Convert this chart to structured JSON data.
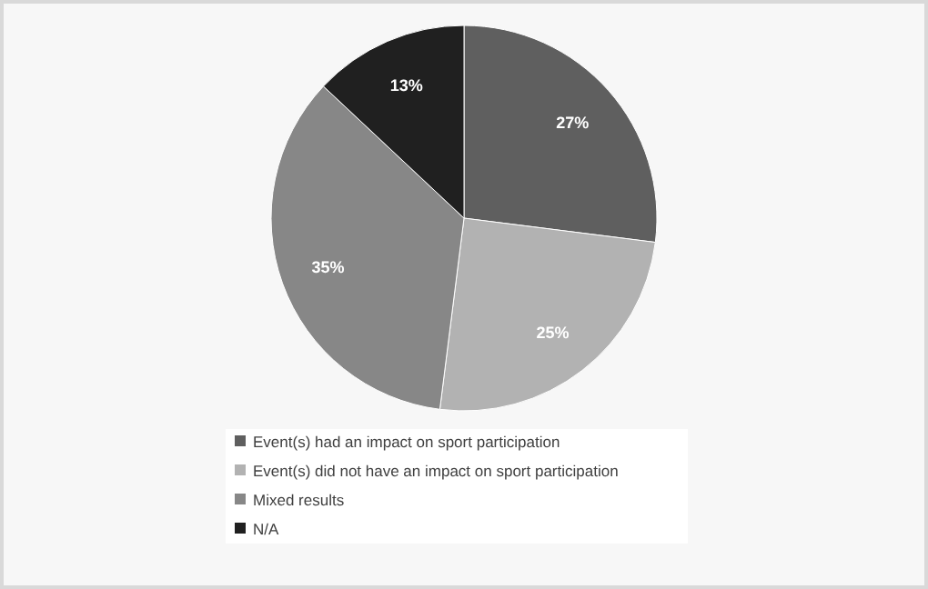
{
  "chart_data": {
    "type": "pie",
    "categories": [
      "Event(s) had an impact on sport participation",
      "Event(s) did not have an impact on sport participation",
      "Mixed results",
      "N/A"
    ],
    "values": [
      27,
      25,
      35,
      13
    ],
    "colors": [
      "#5f5f5f",
      "#b2b2b2",
      "#878787",
      "#202020"
    ],
    "value_labels": [
      "27%",
      "25%",
      "35%",
      "13%"
    ],
    "legend": "bottom"
  }
}
